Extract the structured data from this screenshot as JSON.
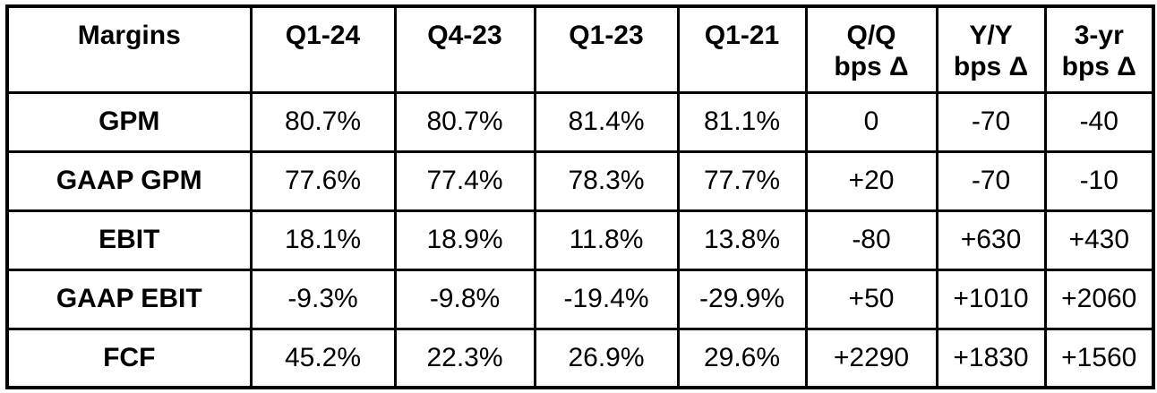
{
  "colors": {
    "background": "#ffffff",
    "border": "#000000",
    "text": "#000000"
  },
  "chart_data": {
    "type": "table",
    "title": "Margins",
    "columns": [
      "Margins",
      "Q1-24",
      "Q4-23",
      "Q1-23",
      "Q1-21",
      "Q/Q bps Δ",
      "Y/Y bps Δ",
      "3-yr bps Δ"
    ],
    "header_lines": [
      [
        "Margins",
        ""
      ],
      [
        "Q1-24",
        ""
      ],
      [
        "Q4-23",
        ""
      ],
      [
        "Q1-23",
        ""
      ],
      [
        "Q1-21",
        ""
      ],
      [
        "Q/Q",
        "bps Δ"
      ],
      [
        "Y/Y",
        "bps Δ"
      ],
      [
        "3-yr",
        "bps Δ"
      ]
    ],
    "rows": [
      [
        "GPM",
        "80.7%",
        "80.7%",
        "81.4%",
        "81.1%",
        "0",
        "-70",
        "-40"
      ],
      [
        "GAAP GPM",
        "77.6%",
        "77.4%",
        "78.3%",
        "77.7%",
        "+20",
        "-70",
        "-10"
      ],
      [
        "EBIT",
        "18.1%",
        "18.9%",
        "11.8%",
        "13.8%",
        "-80",
        "+630",
        "+430"
      ],
      [
        "GAAP EBIT",
        "-9.3%",
        "-9.8%",
        "-19.4%",
        "-29.9%",
        "+50",
        "+1010",
        "+2060"
      ],
      [
        "FCF",
        "45.2%",
        "22.3%",
        "26.9%",
        "29.6%",
        "+2290",
        "+1830",
        "+1560"
      ]
    ]
  }
}
